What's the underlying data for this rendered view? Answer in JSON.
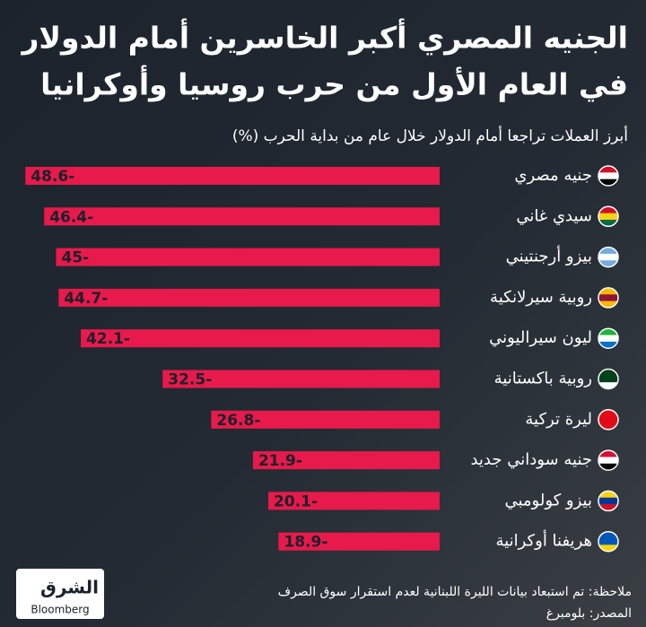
{
  "chart_data": {
    "type": "bar",
    "orientation": "horizontal",
    "title": [
      "الجنيه المصري أكبر الخاسرين أمام الدولار",
      "في العام الأول من حرب روسيا وأوكرانيا"
    ],
    "subtitle": "أبرز العملات تراجعا أمام الدولار خلال عام من بداية الحرب (%)",
    "categories": [
      "جنيه مصري",
      "سيدي غاني",
      "بيزو أرجنتيني",
      "روبية سيرلانكية",
      "ليون سيراليوني",
      "روبية باكستانية",
      "ليرة تركية",
      "جنيه سوداني جديد",
      "بيزو كولومبي",
      "هريفنا أوكرانية"
    ],
    "values": [
      -48.6,
      -46.4,
      -45,
      -44.7,
      -42.1,
      -32.5,
      -26.8,
      -21.9,
      -20.1,
      -18.9
    ],
    "value_labels": [
      "48.6-",
      "46.4-",
      "45-",
      "44.7-",
      "42.1-",
      "32.5-",
      "26.8-",
      "21.9-",
      "20.1-",
      "18.9-"
    ],
    "color": "#e8194b",
    "xlim": [
      -50,
      0
    ],
    "note": "ملاحظة: تم استبعاد بيانات الليرة اللبنانية لعدم استقرار سوق الصرف",
    "source": "المصدر: بلومبرغ",
    "logo": {
      "name": "الشرق",
      "partner": "Bloomberg"
    }
  }
}
